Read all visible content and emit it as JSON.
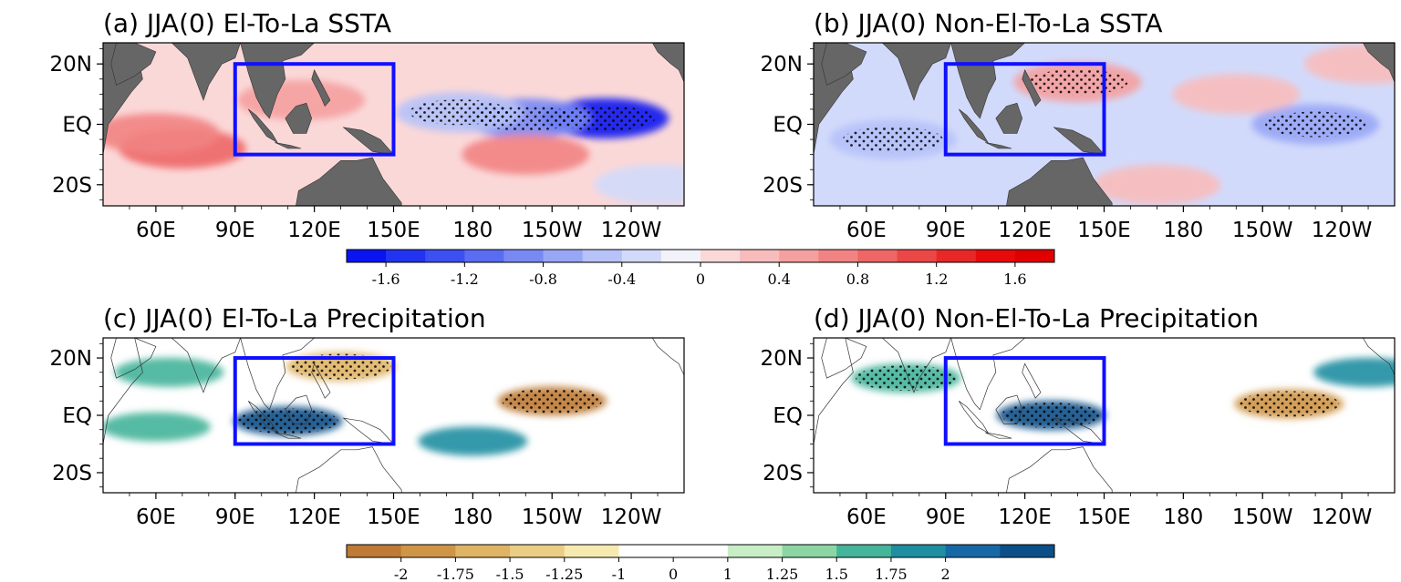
{
  "chart_data": [
    {
      "type": "heatmap",
      "title": "(a) JJA(0) El-To-La SSTA",
      "x_ticks": [
        "60E",
        "90E",
        "120E",
        "150E",
        "180",
        "150W",
        "120W"
      ],
      "y_ticks": [
        "20N",
        "EQ",
        "20S"
      ],
      "x_range_lon": [
        40,
        260
      ],
      "y_range_lat": [
        -27,
        27
      ],
      "box_region": {
        "lon": [
          90,
          150
        ],
        "lat": [
          -10,
          20
        ]
      },
      "features": [
        {
          "lon": 230,
          "lat": 2,
          "value": -1.6
        },
        {
          "lon": 200,
          "lat": 2,
          "value": -1.0
        },
        {
          "lon": 175,
          "lat": 4,
          "value": -0.5
        },
        {
          "lon": 70,
          "lat": -8,
          "value": 0.9
        },
        {
          "lon": 60,
          "lat": -3,
          "value": 0.7
        },
        {
          "lon": 115,
          "lat": 8,
          "value": 0.5
        },
        {
          "lon": 200,
          "lat": -10,
          "value": 0.6
        },
        {
          "lon": 250,
          "lat": -20,
          "value": -0.3
        }
      ]
    },
    {
      "type": "heatmap",
      "title": "(b) JJA(0) Non-El-To-La SSTA",
      "x_ticks": [
        "60E",
        "90E",
        "120E",
        "150E",
        "180",
        "150W",
        "120W"
      ],
      "y_ticks": [
        "20N",
        "EQ",
        "20S"
      ],
      "x_range_lon": [
        40,
        260
      ],
      "y_range_lat": [
        -27,
        27
      ],
      "box_region": {
        "lon": [
          90,
          150
        ],
        "lat": [
          -10,
          20
        ]
      },
      "features": [
        {
          "lon": 230,
          "lat": 0,
          "value": -0.8
        },
        {
          "lon": 70,
          "lat": -5,
          "value": -0.5
        },
        {
          "lon": 140,
          "lat": 14,
          "value": 0.5
        },
        {
          "lon": 200,
          "lat": 10,
          "value": 0.3
        },
        {
          "lon": 250,
          "lat": 20,
          "value": 0.3
        },
        {
          "lon": 170,
          "lat": -20,
          "value": 0.2
        }
      ]
    },
    {
      "type": "heatmap",
      "title": "(c) JJA(0) El-To-La Precipitation",
      "x_ticks": [
        "60E",
        "90E",
        "120E",
        "150E",
        "180",
        "150W",
        "120W"
      ],
      "y_ticks": [
        "20N",
        "EQ",
        "20S"
      ],
      "x_range_lon": [
        40,
        260
      ],
      "y_range_lat": [
        -27,
        27
      ],
      "box_region": {
        "lon": [
          90,
          150
        ],
        "lat": [
          -10,
          20
        ]
      },
      "features": [
        {
          "lon": 210,
          "lat": 5,
          "value": -2.0
        },
        {
          "lon": 130,
          "lat": 17,
          "value": -1.6
        },
        {
          "lon": 110,
          "lat": -2,
          "value": 2.0
        },
        {
          "lon": 180,
          "lat": -9,
          "value": 1.8
        },
        {
          "lon": 60,
          "lat": -4,
          "value": 1.6
        },
        {
          "lon": 65,
          "lat": 15,
          "value": 1.5
        }
      ]
    },
    {
      "type": "heatmap",
      "title": "(d) JJA(0) Non-El-To-La Precipitation",
      "x_ticks": [
        "60E",
        "90E",
        "120E",
        "150E",
        "180",
        "150W",
        "120W"
      ],
      "y_ticks": [
        "20N",
        "EQ",
        "20S"
      ],
      "x_range_lon": [
        40,
        260
      ],
      "y_range_lat": [
        -27,
        27
      ],
      "box_region": {
        "lon": [
          90,
          150
        ],
        "lat": [
          -10,
          20
        ]
      },
      "features": [
        {
          "lon": 220,
          "lat": 4,
          "value": -1.8
        },
        {
          "lon": 130,
          "lat": 0,
          "value": 2.0
        },
        {
          "lon": 75,
          "lat": 13,
          "value": 1.7
        },
        {
          "lon": 250,
          "lat": 15,
          "value": 1.8
        }
      ]
    }
  ],
  "colorbars": [
    {
      "ticks": [
        "-1.6",
        "-1.2",
        "-0.8",
        "-0.4",
        "0",
        "0.4",
        "0.8",
        "1.2",
        "1.6"
      ],
      "range": [
        -1.8,
        1.8
      ],
      "colors": [
        "#0a14f0",
        "#2234ef",
        "#3c4ff0",
        "#5a6cf2",
        "#7989f4",
        "#98a6f6",
        "#b6c2f8",
        "#d2dafb",
        "#f2f2fb",
        "#fbd8d8",
        "#f8bcbc",
        "#f5a0a0",
        "#f28383",
        "#ee6666",
        "#eb4747",
        "#e82828",
        "#e60a0a",
        "#e00000"
      ]
    },
    {
      "ticks": [
        "-2",
        "-1.75",
        "-1.5",
        "-1.25",
        "-1",
        "0",
        "1",
        "1.25",
        "1.5",
        "1.75",
        "2"
      ],
      "colors": [
        "#bf7a35",
        "#cf9546",
        "#dfb465",
        "#ebce85",
        "#f7eab0",
        "#ffffff",
        "#ffffff",
        "#c7eec7",
        "#8cd6a6",
        "#44b49a",
        "#1f8ea1",
        "#1769a6",
        "#0c4f88"
      ]
    }
  ]
}
